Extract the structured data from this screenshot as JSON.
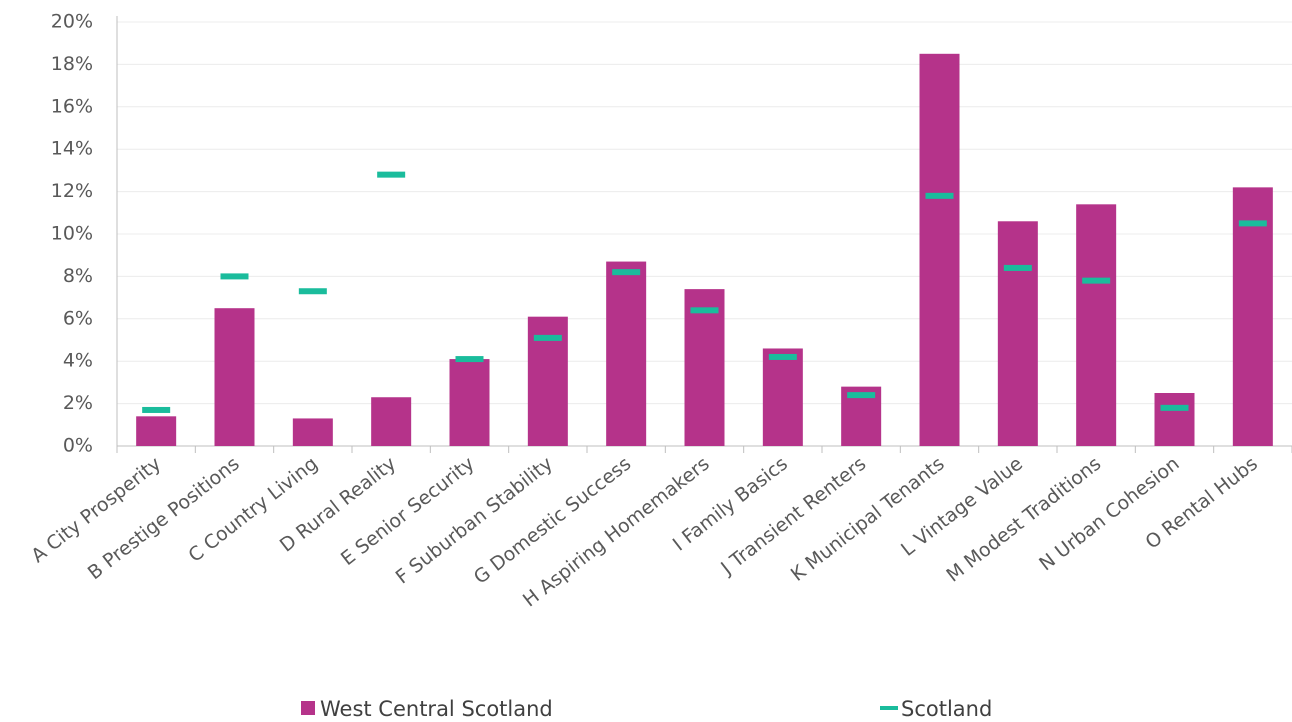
{
  "chart_data": {
    "type": "bar",
    "categories": [
      "A City Prosperity",
      "B Prestige Positions",
      "C Country Living",
      "D Rural Reality",
      "E Senior Security",
      "F Suburban Stability",
      "G Domestic Success",
      "H Aspiring Homemakers",
      "I Family Basics",
      "J Transient Renters",
      "K Municipal Tenants",
      "L Vintage Value",
      "M Modest Traditions",
      "N Urban Cohesion",
      "O Rental Hubs"
    ],
    "series": [
      {
        "name": "West Central Scotland",
        "kind": "bar",
        "color": "#B5338A",
        "values": [
          1.4,
          6.5,
          1.3,
          2.3,
          4.1,
          6.1,
          8.7,
          7.4,
          4.6,
          2.8,
          18.5,
          10.6,
          11.4,
          2.5,
          12.2
        ]
      },
      {
        "name": "Scotland",
        "kind": "marker",
        "color": "#1ABC9C",
        "values": [
          1.7,
          8.0,
          7.3,
          12.8,
          4.1,
          5.1,
          8.2,
          6.4,
          4.2,
          2.4,
          11.8,
          8.4,
          7.8,
          1.8,
          10.5
        ]
      }
    ],
    "y_ticks": [
      "0%",
      "2%",
      "4%",
      "6%",
      "8%",
      "10%",
      "12%",
      "14%",
      "16%",
      "18%",
      "20%"
    ],
    "ylim": [
      0,
      20
    ],
    "y_unit": "%",
    "grid": true,
    "legend_position": "bottom"
  }
}
